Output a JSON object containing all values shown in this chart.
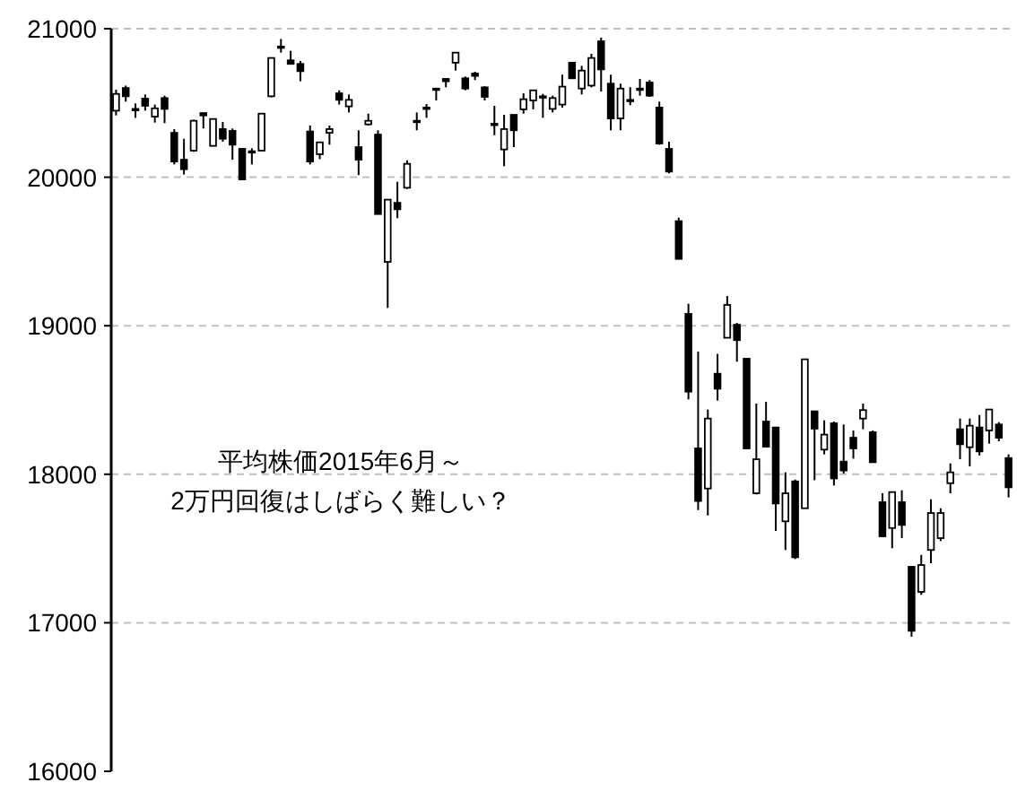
{
  "chart_data": {
    "type": "candlestick",
    "annotations": [
      "平均株価2015年6月～",
      "2万円回復はしばらく難しい？"
    ],
    "color": "#000000",
    "grid": "y",
    "ylim": [
      16000,
      21000
    ],
    "yticks": [
      16000,
      17000,
      18000,
      19000,
      20000,
      21000
    ],
    "categories": [
      null,
      null,
      null,
      null,
      null,
      null,
      null,
      null,
      null,
      null,
      null,
      null,
      null,
      null,
      null,
      null,
      null,
      null,
      null,
      null,
      null,
      null,
      null,
      null,
      null,
      null,
      null,
      null,
      null,
      null,
      null,
      null,
      null,
      null,
      null,
      null,
      null,
      null,
      null,
      null,
      null,
      null,
      null,
      null,
      null,
      null,
      null,
      null,
      null,
      null,
      null,
      null,
      null,
      null,
      null,
      null,
      null,
      null,
      null,
      null,
      null,
      null,
      null,
      null,
      null,
      null,
      null,
      null,
      null,
      null,
      null,
      null,
      null,
      null,
      null,
      null,
      null,
      null,
      null,
      null,
      null,
      null,
      null,
      null,
      null,
      null,
      null,
      null,
      null,
      null,
      null,
      null,
      null
    ],
    "ohlc": [
      [
        20448,
        20589,
        20416,
        20561
      ],
      [
        20601,
        20617,
        20509,
        20545
      ],
      [
        20460,
        20497,
        20400,
        20452
      ],
      [
        20529,
        20557,
        20448,
        20481
      ],
      [
        20408,
        20489,
        20368,
        20464
      ],
      [
        20533,
        20549,
        20364,
        20460
      ],
      [
        20299,
        20324,
        20086,
        20106
      ],
      [
        20118,
        20259,
        20018,
        20054
      ],
      [
        20179,
        20388,
        20171,
        20380
      ],
      [
        20432,
        20432,
        20328,
        20416
      ],
      [
        20211,
        20392,
        20211,
        20392
      ],
      [
        20324,
        20372,
        20239,
        20259
      ],
      [
        20312,
        20328,
        20118,
        20219
      ],
      [
        20191,
        20191,
        19985,
        19985
      ],
      [
        20167,
        20195,
        20086,
        20175
      ],
      [
        20179,
        20428,
        20179,
        20428
      ],
      [
        20545,
        20803,
        20537,
        20803
      ],
      [
        20880,
        20931,
        20839,
        20876
      ],
      [
        20787,
        20851,
        20763,
        20763
      ],
      [
        20763,
        20783,
        20646,
        20714
      ],
      [
        20308,
        20348,
        20086,
        20106
      ],
      [
        20155,
        20235,
        20122,
        20235
      ],
      [
        20299,
        20348,
        20219,
        20324
      ],
      [
        20565,
        20585,
        20489,
        20521
      ],
      [
        20477,
        20557,
        20436,
        20521
      ],
      [
        20203,
        20316,
        20014,
        20118
      ],
      [
        20356,
        20428,
        20348,
        20380
      ],
      [
        20287,
        20316,
        19752,
        19752
      ],
      [
        19430,
        19849,
        19120,
        19849
      ],
      [
        19828,
        19969,
        19724,
        19784
      ],
      [
        19929,
        20114,
        19921,
        20090
      ],
      [
        20380,
        20436,
        20316,
        20372
      ],
      [
        20469,
        20493,
        20400,
        20465
      ],
      [
        20597,
        20597,
        20517,
        20589
      ],
      [
        20662,
        20662,
        20606,
        20646
      ],
      [
        20771,
        20839,
        20718,
        20839
      ],
      [
        20666,
        20678,
        20585,
        20597
      ],
      [
        20698,
        20710,
        20654,
        20682
      ],
      [
        20605,
        20613,
        20517,
        20541
      ],
      [
        20360,
        20481,
        20283,
        20356
      ],
      [
        20187,
        20420,
        20074,
        20324
      ],
      [
        20420,
        20420,
        20203,
        20316
      ],
      [
        20457,
        20565,
        20428,
        20525
      ],
      [
        20517,
        20585,
        20457,
        20585
      ],
      [
        20541,
        20561,
        20400,
        20545
      ],
      [
        20460,
        20549,
        20436,
        20533
      ],
      [
        20489,
        20690,
        20469,
        20610
      ],
      [
        20771,
        20771,
        20666,
        20666
      ],
      [
        20597,
        20750,
        20557,
        20718
      ],
      [
        20617,
        20831,
        20605,
        20803
      ],
      [
        20915,
        20940,
        20577,
        20726
      ],
      [
        20630,
        20690,
        20316,
        20396
      ],
      [
        20396,
        20630,
        20316,
        20597
      ],
      [
        20517,
        20606,
        20485,
        20521
      ],
      [
        20597,
        20662,
        20549,
        20593
      ],
      [
        20638,
        20654,
        20541,
        20549
      ],
      [
        20469,
        20509,
        20219,
        20227
      ],
      [
        20191,
        20239,
        20026,
        20038
      ],
      [
        19704,
        19728,
        19450,
        19450
      ],
      [
        19080,
        19148,
        18504,
        18556
      ],
      [
        18174,
        18826,
        17759,
        17820
      ],
      [
        17904,
        18436,
        17723,
        18375
      ],
      [
        18677,
        18810,
        18496,
        18576
      ],
      [
        18919,
        19200,
        18919,
        19140
      ],
      [
        19007,
        19019,
        18758,
        18903
      ],
      [
        18778,
        18778,
        18174,
        18174
      ],
      [
        17872,
        18476,
        17864,
        18101
      ],
      [
        18355,
        18488,
        18186,
        18186
      ],
      [
        18315,
        18315,
        17618,
        17803
      ],
      [
        17683,
        18013,
        17490,
        17872
      ],
      [
        17952,
        17964,
        17429,
        17441
      ],
      [
        17771,
        18774,
        17771,
        18774
      ],
      [
        18424,
        18424,
        17960,
        18307
      ],
      [
        18166,
        18363,
        18134,
        18267
      ],
      [
        18343,
        18355,
        17924,
        17972
      ],
      [
        18085,
        18335,
        18005,
        18025
      ],
      [
        18246,
        18295,
        18105,
        18174
      ],
      [
        18375,
        18476,
        18303,
        18432
      ],
      [
        18283,
        18295,
        18081,
        18081
      ],
      [
        17812,
        17872,
        17582,
        17582
      ],
      [
        17638,
        17880,
        17502,
        17880
      ],
      [
        17812,
        17892,
        17570,
        17659
      ],
      [
        17377,
        17377,
        16906,
        16946
      ],
      [
        17208,
        17457,
        17188,
        17389
      ],
      [
        17490,
        17832,
        17401,
        17739
      ],
      [
        17570,
        17771,
        17550,
        17739
      ],
      [
        17940,
        18073,
        17872,
        18013
      ],
      [
        18303,
        18375,
        18101,
        18202
      ],
      [
        18182,
        18375,
        18053,
        18327
      ],
      [
        18315,
        18399,
        18126,
        18154
      ],
      [
        18295,
        18436,
        18206,
        18436
      ],
      [
        18335,
        18351,
        18222,
        18246
      ],
      [
        18109,
        18134,
        17844,
        17912
      ]
    ]
  }
}
